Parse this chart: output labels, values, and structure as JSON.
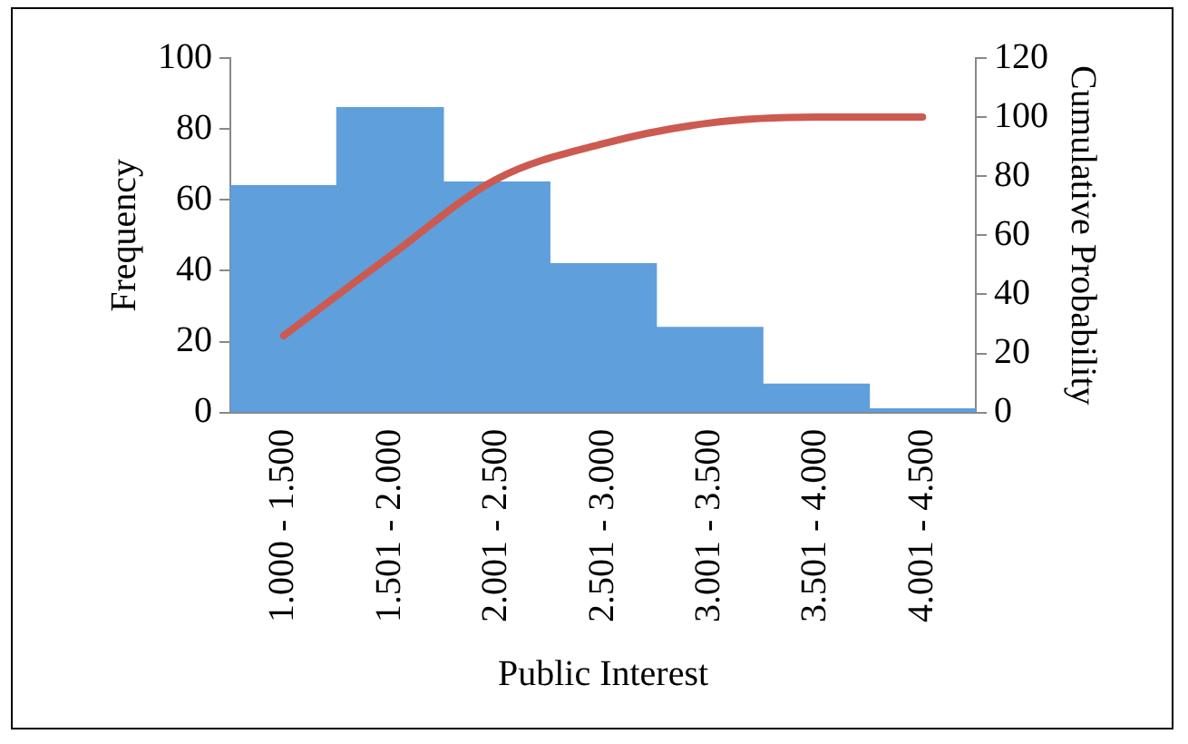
{
  "chart_data": {
    "type": "bar",
    "xlabel": "Public Interest",
    "ylabel": "Frequency",
    "y2label": "Cumulative Probability",
    "categories": [
      "1.000 - 1.500",
      "1.501 - 2.000",
      "2.001 - 2.500",
      "2.501 - 3.000",
      "3.001 - 3.500",
      "3.501 - 4.000",
      "4.001 - 4.500"
    ],
    "series": [
      {
        "color": "#5f9fdc",
        "values": [
          64,
          86,
          65,
          42,
          24,
          8,
          1
        ]
      },
      {
        "type": "line",
        "axis": "y2",
        "color": "#cc5a50",
        "values": [
          26,
          53,
          79,
          91,
          98,
          100,
          100
        ]
      }
    ],
    "ylim": [
      0,
      100
    ],
    "yticks": [
      0,
      20,
      40,
      60,
      80,
      100
    ],
    "y2lim": [
      0,
      120
    ],
    "y2ticks": [
      0,
      20,
      40,
      60,
      80,
      100,
      120
    ],
    "grid": false,
    "legend": false,
    "marker": "none",
    "line_style": "solid"
  }
}
